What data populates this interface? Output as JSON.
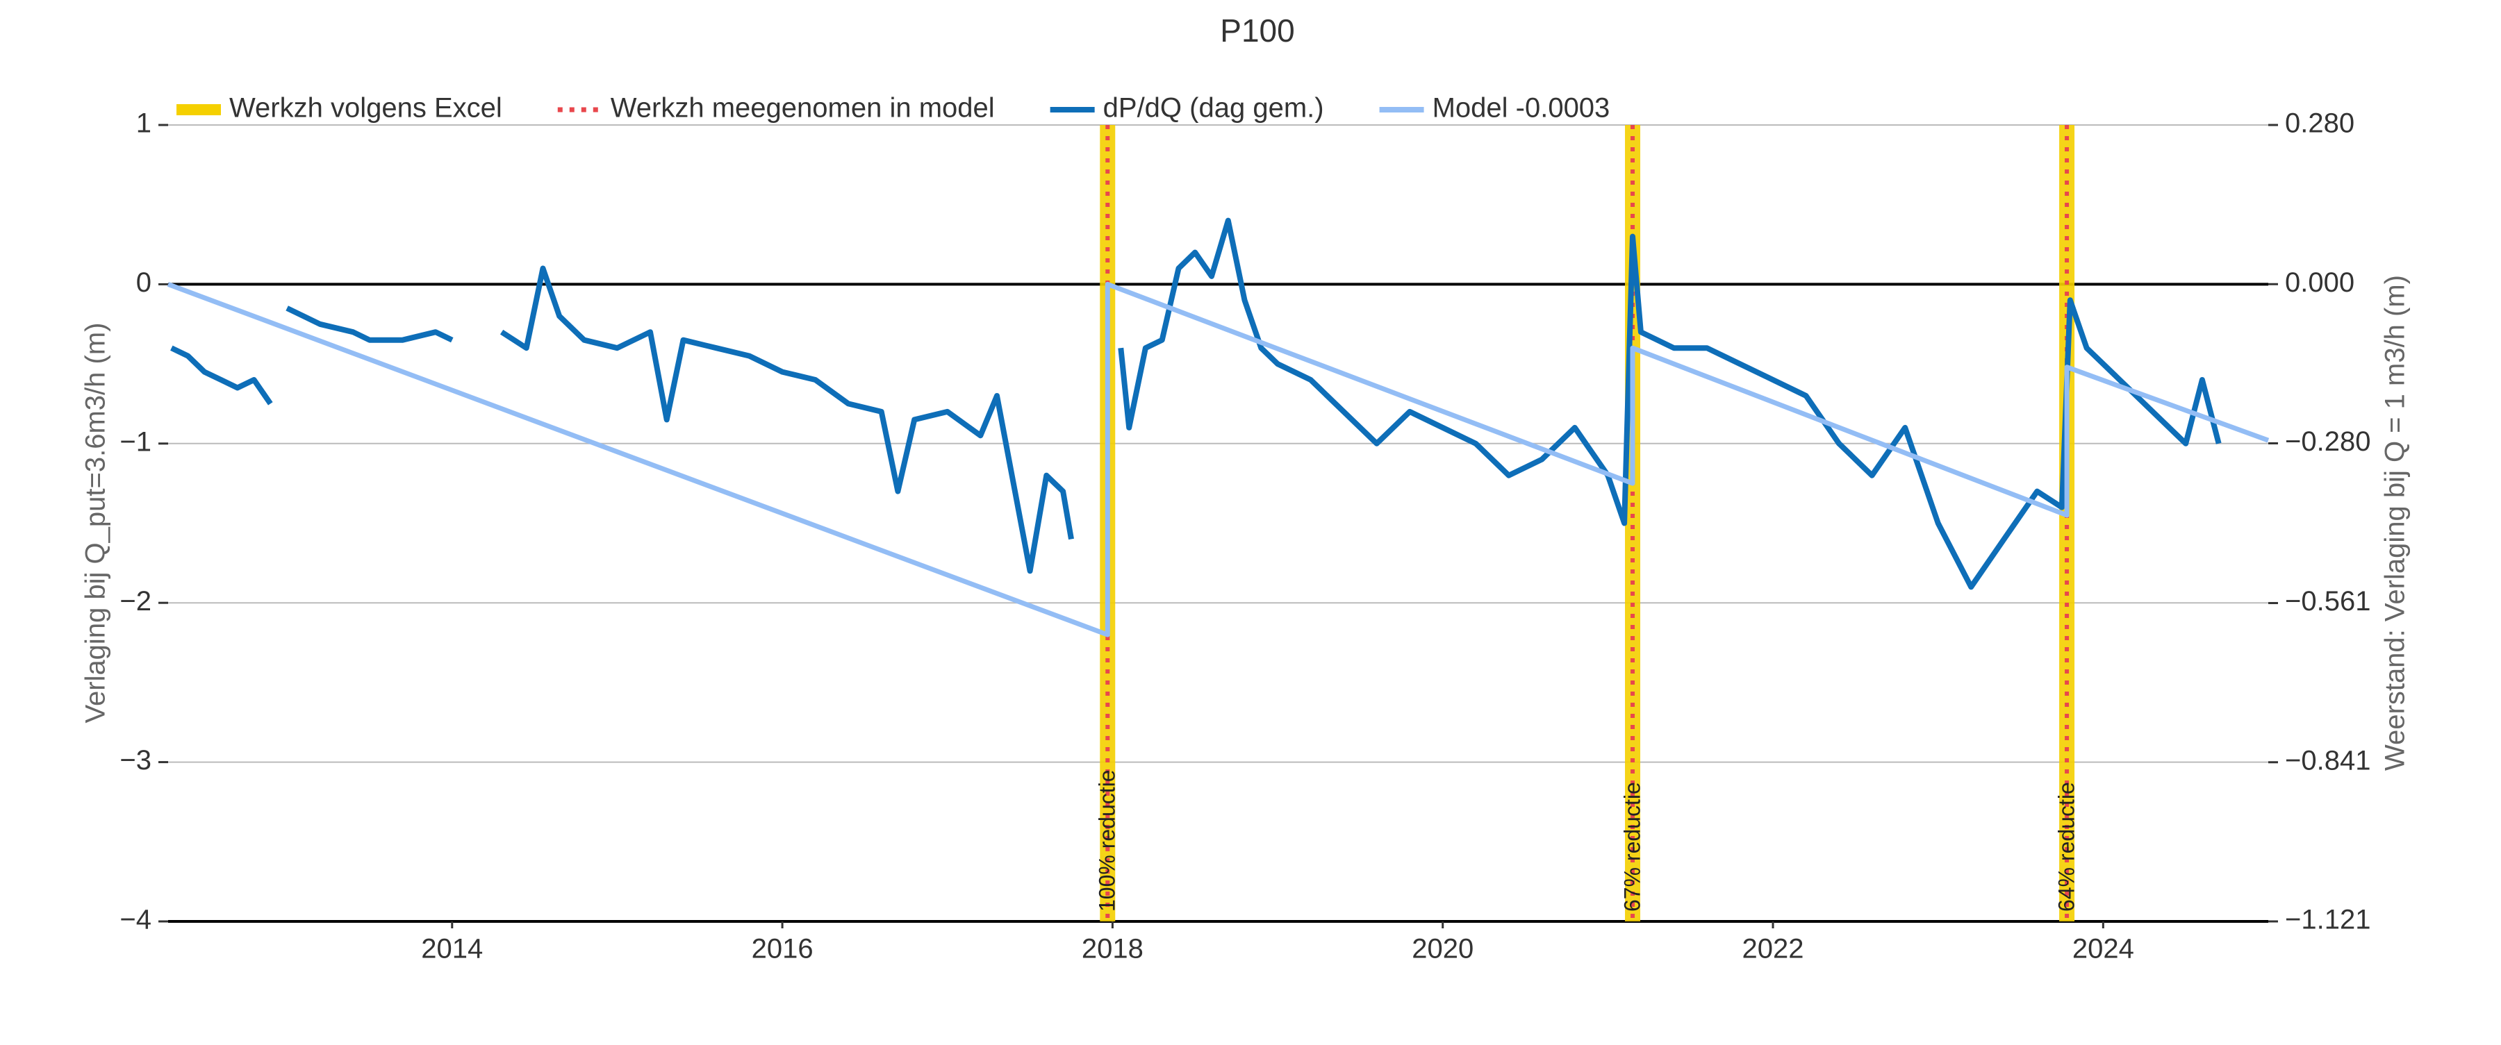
{
  "chart_data": {
    "type": "line",
    "title": "P100",
    "ylabel": "Verlaging bij Q_put=3.6m3/h (m)",
    "y2label": "Weerstand: Verlaging bij Q = 1 m3/h (m)",
    "xlim": [
      2012.28,
      2025.0
    ],
    "xticks": [
      2014,
      2016,
      2018,
      2020,
      2022,
      2024
    ],
    "ylim": [
      -4,
      1
    ],
    "yticks": [
      {
        "value": -4,
        "label": "−4"
      },
      {
        "value": -3,
        "label": "−3"
      },
      {
        "value": -2,
        "label": "−2"
      },
      {
        "value": -1,
        "label": "−1"
      },
      0,
      1
    ],
    "y2lim": [
      -1.121,
      0.28
    ],
    "y2ticks": [
      {
        "value": -1.121,
        "label": "−1.121"
      },
      {
        "value": -0.841,
        "label": "−0.841"
      },
      {
        "value": -0.561,
        "label": "−0.561"
      },
      {
        "value": -0.28,
        "label": "−0.280"
      },
      {
        "value": 0,
        "label": "0.000"
      },
      {
        "value": 0.28,
        "label": "0.280"
      }
    ],
    "grid": true,
    "legend": "top-left",
    "events": {
      "excel_name": "Werkzh volgens Excel",
      "excel_color": "#f5d000",
      "model_name": "Werkzh meegenomen in model",
      "model_color": "#e8474c",
      "items": [
        {
          "x": 2017.97,
          "label": "100% reductie"
        },
        {
          "x": 2021.15,
          "label": "67% reductie"
        },
        {
          "x": 2023.78,
          "label": "64% reductie"
        }
      ]
    },
    "series": [
      {
        "name": "dP/dQ (dag gem.)",
        "color": "#0e6eb8",
        "x": [
          2012.3,
          2012.4,
          2012.5,
          2012.6,
          2012.7,
          2012.8,
          2012.9,
          2012.95,
          2013.0,
          2013.1,
          2013.2,
          2013.4,
          2013.5,
          2013.7,
          2013.9,
          2014.0,
          2014.1,
          2014.3,
          2014.45,
          2014.55,
          2014.65,
          2014.8,
          2015.0,
          2015.2,
          2015.3,
          2015.4,
          2015.6,
          2015.8,
          2016.0,
          2016.2,
          2016.4,
          2016.6,
          2016.7,
          2016.8,
          2017.0,
          2017.2,
          2017.3,
          2017.4,
          2017.5,
          2017.6,
          2017.7,
          2017.75,
          2017.9,
          2018.05,
          2018.1,
          2018.2,
          2018.3,
          2018.4,
          2018.5,
          2018.6,
          2018.7,
          2018.8,
          2018.9,
          2019.0,
          2019.2,
          2019.4,
          2019.6,
          2019.8,
          2020.0,
          2020.2,
          2020.4,
          2020.6,
          2020.8,
          2021.0,
          2021.1,
          2021.15,
          2021.2,
          2021.4,
          2021.6,
          2021.8,
          2022.0,
          2022.2,
          2022.4,
          2022.6,
          2022.8,
          2023.0,
          2023.2,
          2023.4,
          2023.6,
          2023.75,
          2023.8,
          2023.9,
          2024.1,
          2024.3,
          2024.5,
          2024.6,
          2024.7
        ],
        "values": [
          -0.4,
          -0.45,
          -0.55,
          -0.6,
          -0.65,
          -0.6,
          -0.75,
          null,
          -0.15,
          -0.2,
          -0.25,
          -0.3,
          -0.35,
          -0.35,
          -0.3,
          -0.35,
          null,
          -0.3,
          -0.4,
          0.1,
          -0.2,
          -0.35,
          -0.4,
          -0.3,
          -0.85,
          -0.35,
          -0.4,
          -0.45,
          -0.55,
          -0.6,
          -0.75,
          -0.8,
          -1.3,
          -0.85,
          -0.8,
          -0.95,
          -0.7,
          -1.25,
          -1.8,
          -1.2,
          -1.3,
          -1.6,
          null,
          -0.4,
          -0.9,
          -0.4,
          -0.35,
          0.1,
          0.2,
          0.05,
          0.4,
          -0.1,
          -0.4,
          -0.5,
          -0.6,
          -0.8,
          -1.0,
          -0.8,
          -0.9,
          -1.0,
          -1.2,
          -1.1,
          -0.9,
          -1.2,
          -1.5,
          0.3,
          -0.3,
          -0.4,
          -0.4,
          -0.5,
          -0.6,
          -0.7,
          -1.0,
          -1.2,
          -0.9,
          -1.5,
          -1.9,
          -1.6,
          -1.3,
          -1.4,
          -0.1,
          -0.4,
          -0.6,
          -0.8,
          -1.0,
          -0.6,
          -1.0
        ]
      },
      {
        "name": "Model -0.0003",
        "color": "#93bdf5",
        "x": [
          2012.28,
          2017.97,
          2017.97,
          2021.15,
          2021.15,
          2023.78,
          2023.78,
          2025.0
        ],
        "values": [
          0,
          -2.2,
          0,
          -1.25,
          -0.4,
          -1.45,
          -0.52,
          -0.98
        ]
      }
    ]
  }
}
